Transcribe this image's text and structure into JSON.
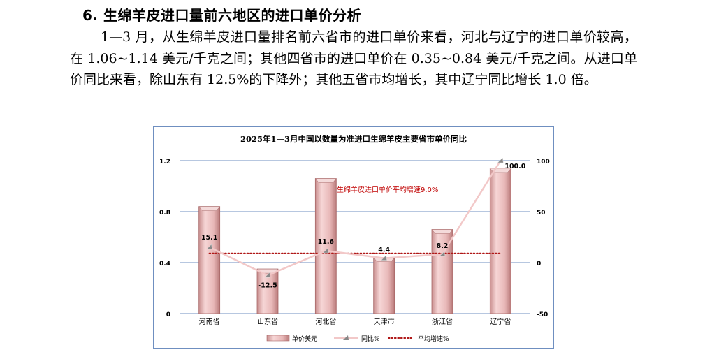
{
  "section": {
    "heading": "6. 生绵羊皮进口量前六地区的进口单价分析",
    "paragraph": "1—3 月，从生绵羊皮进口量排名前六省市的进口单价来看，河北与辽宁的进口单价较高，在 1.06~1.14 美元/千克之间；其他四省市的进口单价在 0.35~0.84 美元/千克之间。从进口单价同比来看，除山东有 12.5%的下降外；其他五省市均增长，其中辽宁同比增长 1.0 倍。"
  },
  "colors": {
    "bar": "#e8b8b8",
    "bar_edge": "#a86868",
    "yoy_line": "#f2c8c8",
    "avg_line": "#b01818",
    "annotation": "#c00000",
    "gridline": "#6f8fc0"
  },
  "chart_data": {
    "type": "bar",
    "title": "2025年1—3月中国以数量为准进口生绵羊皮主要省市单价同比",
    "categories": [
      "河南省",
      "山东省",
      "河北省",
      "天津市",
      "浙江省",
      "辽宁省"
    ],
    "series": [
      {
        "name": "单价美元",
        "type": "bar",
        "axis": "left",
        "values": [
          0.84,
          0.35,
          1.06,
          0.44,
          0.66,
          1.14
        ]
      },
      {
        "name": "同比%",
        "type": "line",
        "axis": "right",
        "values": [
          15.1,
          -12.5,
          11.6,
          4.4,
          8.2,
          100.0
        ]
      },
      {
        "name": "平均增速%",
        "type": "line",
        "style": "dotted",
        "axis": "right",
        "values": [
          9.0,
          9.0,
          9.0,
          9.0,
          9.0,
          9.0
        ]
      }
    ],
    "data_labels": [
      "15.1",
      "-12.5",
      "11.6",
      "4.4",
      "8.2",
      "100.0"
    ],
    "annotation": "生绵羊皮进口单价平均增速9.0%",
    "y_left": {
      "min": 0,
      "max": 1.2,
      "ticks": [
        "0",
        "0.4",
        "0.8",
        "1.2"
      ]
    },
    "y_right": {
      "min": -50,
      "max": 100,
      "ticks": [
        "-50",
        "0",
        "50",
        "100"
      ]
    },
    "grid": true,
    "legend_position": "bottom"
  }
}
